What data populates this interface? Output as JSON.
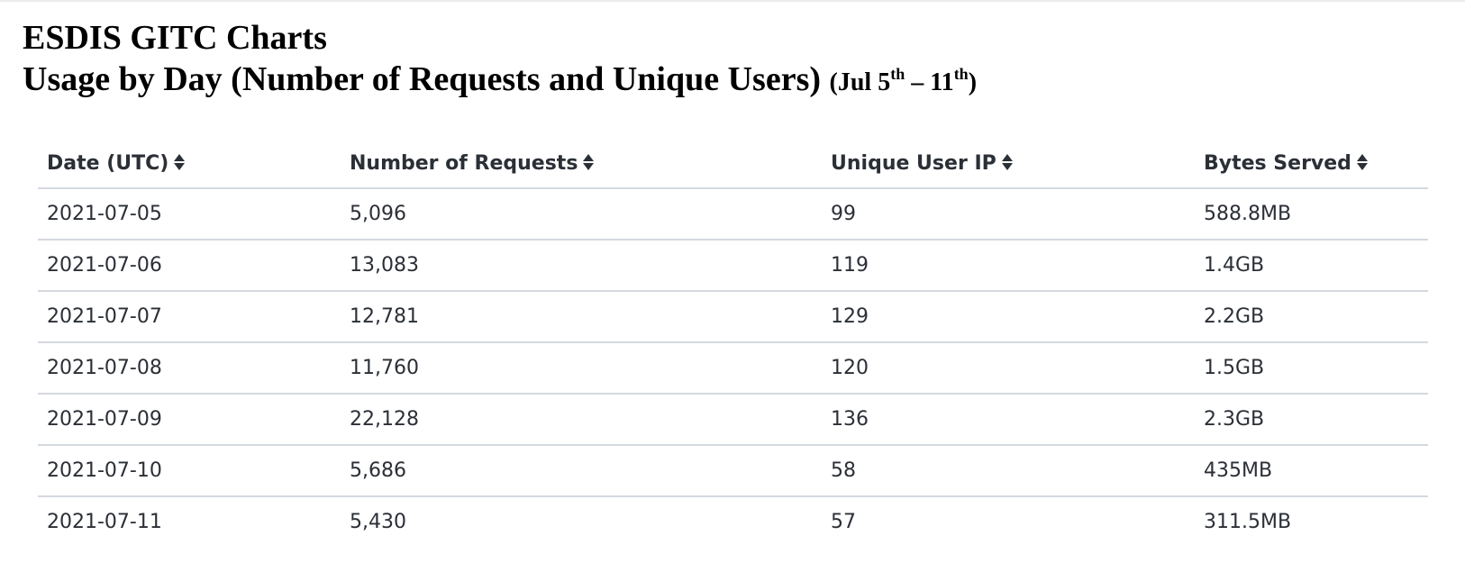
{
  "header": {
    "title": "ESDIS GITC Charts",
    "subtitle": "Usage by Day (Number of Requests and Unique Users)",
    "range": {
      "open": "(Jul 5",
      "start_suffix": "th",
      "dash": " – 11",
      "end_suffix": "th",
      "close": ")"
    }
  },
  "table": {
    "columns": [
      {
        "label": "Date (UTC)",
        "sort_icon": "sort-icon"
      },
      {
        "label": "Number of Requests",
        "sort_icon": "sort-icon"
      },
      {
        "label": "Unique User IP",
        "sort_icon": "sort-icon"
      },
      {
        "label": "Bytes Served",
        "sort_icon": "sort-icon"
      }
    ],
    "rows": [
      {
        "date": "2021-07-05",
        "requests": "5,096",
        "users": "99",
        "bytes": "588.8MB"
      },
      {
        "date": "2021-07-06",
        "requests": "13,083",
        "users": "119",
        "bytes": "1.4GB"
      },
      {
        "date": "2021-07-07",
        "requests": "12,781",
        "users": "129",
        "bytes": "2.2GB"
      },
      {
        "date": "2021-07-08",
        "requests": "11,760",
        "users": "120",
        "bytes": "1.5GB"
      },
      {
        "date": "2021-07-09",
        "requests": "22,128",
        "users": "136",
        "bytes": "2.3GB"
      },
      {
        "date": "2021-07-10",
        "requests": "5,686",
        "users": "58",
        "bytes": "435MB"
      },
      {
        "date": "2021-07-11",
        "requests": "5,430",
        "users": "57",
        "bytes": "311.5MB"
      }
    ]
  }
}
